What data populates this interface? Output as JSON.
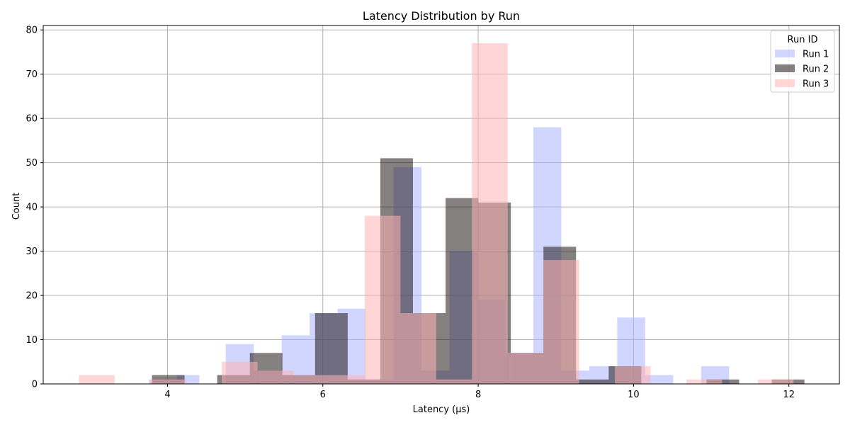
{
  "chart_data": {
    "type": "bar",
    "title": "Latency Distribution by Run",
    "xlabel": "Latency (µs)",
    "ylabel": "Count",
    "xlim": [
      2.4,
      12.65
    ],
    "ylim": [
      0,
      81
    ],
    "xticks": [
      4,
      6,
      8,
      10,
      12
    ],
    "yticks": [
      0,
      10,
      20,
      30,
      40,
      50,
      60,
      70,
      80
    ],
    "grid": true,
    "legend": {
      "title": "Run ID",
      "placement": "top-right"
    },
    "series": [
      {
        "name": "Run 1",
        "color": "#aab4ff",
        "opacity": 0.55,
        "bars": [
          {
            "x0": 3.76,
            "x1": 4.12,
            "y": 1
          },
          {
            "x0": 4.12,
            "x1": 4.41,
            "y": 2
          },
          {
            "x0": 4.75,
            "x1": 5.11,
            "y": 9
          },
          {
            "x0": 5.11,
            "x1": 5.47,
            "y": 3
          },
          {
            "x0": 5.47,
            "x1": 5.83,
            "y": 11
          },
          {
            "x0": 5.83,
            "x1": 6.19,
            "y": 16
          },
          {
            "x0": 6.19,
            "x1": 6.55,
            "y": 17
          },
          {
            "x0": 6.55,
            "x1": 6.91,
            "y": 1
          },
          {
            "x0": 6.91,
            "x1": 7.27,
            "y": 49
          },
          {
            "x0": 7.27,
            "x1": 7.63,
            "y": 3
          },
          {
            "x0": 7.63,
            "x1": 7.99,
            "y": 30
          },
          {
            "x0": 7.99,
            "x1": 8.35,
            "y": 19
          },
          {
            "x0": 8.35,
            "x1": 8.71,
            "y": 7
          },
          {
            "x0": 8.71,
            "x1": 9.07,
            "y": 58
          },
          {
            "x0": 9.07,
            "x1": 9.43,
            "y": 3
          },
          {
            "x0": 9.43,
            "x1": 9.79,
            "y": 4
          },
          {
            "x0": 9.79,
            "x1": 10.15,
            "y": 15
          },
          {
            "x0": 10.15,
            "x1": 10.51,
            "y": 2
          },
          {
            "x0": 10.87,
            "x1": 11.23,
            "y": 4
          }
        ]
      },
      {
        "name": "Run 2",
        "color": "#201818",
        "opacity": 0.55,
        "bars": [
          {
            "x0": 3.8,
            "x1": 4.22,
            "y": 2
          },
          {
            "x0": 4.64,
            "x1": 5.06,
            "y": 2
          },
          {
            "x0": 5.06,
            "x1": 5.48,
            "y": 7
          },
          {
            "x0": 5.48,
            "x1": 5.9,
            "y": 2
          },
          {
            "x0": 5.9,
            "x1": 6.32,
            "y": 16
          },
          {
            "x0": 6.32,
            "x1": 6.74,
            "y": 1
          },
          {
            "x0": 6.74,
            "x1": 7.16,
            "y": 51
          },
          {
            "x0": 7.16,
            "x1": 7.58,
            "y": 16
          },
          {
            "x0": 7.58,
            "x1": 8.0,
            "y": 42
          },
          {
            "x0": 8.0,
            "x1": 8.42,
            "y": 41
          },
          {
            "x0": 8.42,
            "x1": 8.84,
            "y": 7
          },
          {
            "x0": 8.84,
            "x1": 9.26,
            "y": 31
          },
          {
            "x0": 9.26,
            "x1": 9.68,
            "y": 1
          },
          {
            "x0": 9.68,
            "x1": 10.1,
            "y": 4
          },
          {
            "x0": 10.94,
            "x1": 11.36,
            "y": 1
          },
          {
            "x0": 11.78,
            "x1": 12.2,
            "y": 1
          }
        ]
      },
      {
        "name": "Run 3",
        "color": "#ffb3b3",
        "opacity": 0.55,
        "bars": [
          {
            "x0": 2.86,
            "x1": 3.32,
            "y": 2
          },
          {
            "x0": 3.78,
            "x1": 4.24,
            "y": 1
          },
          {
            "x0": 4.7,
            "x1": 5.16,
            "y": 5
          },
          {
            "x0": 5.16,
            "x1": 5.62,
            "y": 3
          },
          {
            "x0": 5.62,
            "x1": 6.08,
            "y": 2
          },
          {
            "x0": 6.08,
            "x1": 6.54,
            "y": 2
          },
          {
            "x0": 6.54,
            "x1": 7.0,
            "y": 38
          },
          {
            "x0": 7.0,
            "x1": 7.46,
            "y": 16
          },
          {
            "x0": 7.46,
            "x1": 7.92,
            "y": 1
          },
          {
            "x0": 7.92,
            "x1": 8.38,
            "y": 77
          },
          {
            "x0": 8.38,
            "x1": 8.84,
            "y": 7
          },
          {
            "x0": 8.84,
            "x1": 9.3,
            "y": 28
          },
          {
            "x0": 9.76,
            "x1": 10.22,
            "y": 4
          },
          {
            "x0": 10.68,
            "x1": 11.14,
            "y": 1
          },
          {
            "x0": 11.6,
            "x1": 12.06,
            "y": 1
          }
        ]
      }
    ]
  }
}
